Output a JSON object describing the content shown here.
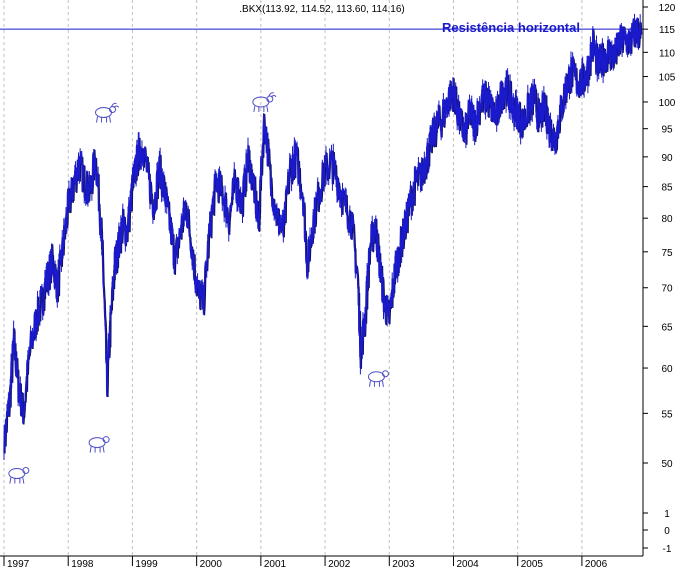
{
  "chart_data": {
    "type": "line",
    "title": ".BKX(113.92, 114.52, 113.60, 114.16)",
    "annotation": "Resistência horizontal",
    "resistance_level": 115,
    "y_axis": {
      "position": "right",
      "scale": "log",
      "ticks": [
        120,
        115,
        110,
        105,
        100,
        95,
        90,
        85,
        80,
        75,
        70,
        65,
        60,
        55,
        50
      ],
      "lower_ticks": [
        1,
        0,
        -1
      ]
    },
    "x_axis": {
      "labels": [
        "1997",
        "1998",
        "1999",
        "2000",
        "2001",
        "2002",
        "2003",
        "2004",
        "2005",
        "2006"
      ],
      "range": [
        1997.0,
        2006.92
      ]
    },
    "grid": {
      "vertical": true,
      "style": "dashed"
    },
    "colors": {
      "price_line": "#1a1acc",
      "price_dark": "#101050",
      "resistance_line": "#1a1acc",
      "annotation": "#1a1acc",
      "grid": "#c0c0c0"
    },
    "icons": [
      {
        "name": "bear-icon",
        "x": 1997.2,
        "y": 49
      },
      {
        "name": "bear-icon",
        "x": 1998.45,
        "y": 52
      },
      {
        "name": "bull-icon",
        "x": 1998.55,
        "y": 98
      },
      {
        "name": "bull-icon",
        "x": 2001.0,
        "y": 100
      },
      {
        "name": "bear-icon",
        "x": 2002.8,
        "y": 59
      }
    ],
    "series": [
      {
        "values_x": [
          1997.0,
          1997.08,
          1997.15,
          1997.22,
          1997.3,
          1997.4,
          1997.5,
          1997.58,
          1997.66,
          1997.75,
          1997.83,
          1997.92,
          1998.0,
          1998.08,
          1998.16,
          1998.25,
          1998.33,
          1998.42,
          1998.5,
          1998.55,
          1998.6,
          1998.66,
          1998.72,
          1998.78,
          1998.85,
          1998.92,
          1999.0,
          1999.08,
          1999.16,
          1999.25,
          1999.33,
          1999.42,
          1999.5,
          1999.58,
          1999.66,
          1999.75,
          1999.83,
          1999.92,
          2000.0,
          2000.1,
          2000.2,
          2000.3,
          2000.4,
          2000.5,
          2000.6,
          2000.7,
          2000.8,
          2000.9,
          2000.96,
          2001.05,
          2001.15,
          2001.25,
          2001.35,
          2001.45,
          2001.55,
          2001.65,
          2001.72,
          2001.8,
          2001.9,
          2002.0,
          2002.1,
          2002.2,
          2002.3,
          2002.4,
          2002.5,
          2002.55,
          2002.62,
          2002.7,
          2002.78,
          2002.85,
          2002.92,
          2003.0,
          2003.08,
          2003.17,
          2003.25,
          2003.33,
          2003.42,
          2003.5,
          2003.58,
          2003.66,
          2003.75,
          2003.83,
          2003.92,
          2004.0,
          2004.08,
          2004.17,
          2004.25,
          2004.33,
          2004.42,
          2004.5,
          2004.58,
          2004.66,
          2004.75,
          2004.83,
          2004.92,
          2005.0,
          2005.08,
          2005.17,
          2005.25,
          2005.33,
          2005.42,
          2005.5,
          2005.58,
          2005.66,
          2005.75,
          2005.83,
          2005.92,
          2006.0,
          2006.08,
          2006.17,
          2006.25,
          2006.33,
          2006.42,
          2006.5,
          2006.58,
          2006.66,
          2006.75,
          2006.83,
          2006.92
        ],
        "values_y": [
          52,
          56,
          63,
          58,
          55,
          62,
          66,
          68,
          71,
          74,
          70,
          76,
          82,
          85,
          89,
          86,
          84,
          90,
          80,
          70,
          58,
          66,
          73,
          76,
          79,
          78,
          85,
          90,
          92,
          86,
          82,
          88,
          84,
          79,
          74,
          78,
          82,
          76,
          70,
          68,
          78,
          86,
          84,
          80,
          86,
          82,
          90,
          84,
          79,
          97,
          86,
          80,
          78,
          88,
          90,
          84,
          73,
          79,
          84,
          88,
          89,
          86,
          82,
          80,
          72,
          62,
          66,
          76,
          79,
          73,
          68,
          66,
          72,
          76,
          79,
          83,
          86,
          87,
          90,
          93,
          96,
          97,
          101,
          102,
          97,
          94,
          98,
          96,
          100,
          101,
          99,
          97,
          102,
          103,
          99,
          98,
          96,
          99,
          101,
          97,
          99,
          95,
          93,
          98,
          103,
          106,
          104,
          104,
          106,
          112,
          107,
          109,
          110,
          109,
          112,
          113,
          112,
          115,
          114
        ]
      }
    ]
  }
}
